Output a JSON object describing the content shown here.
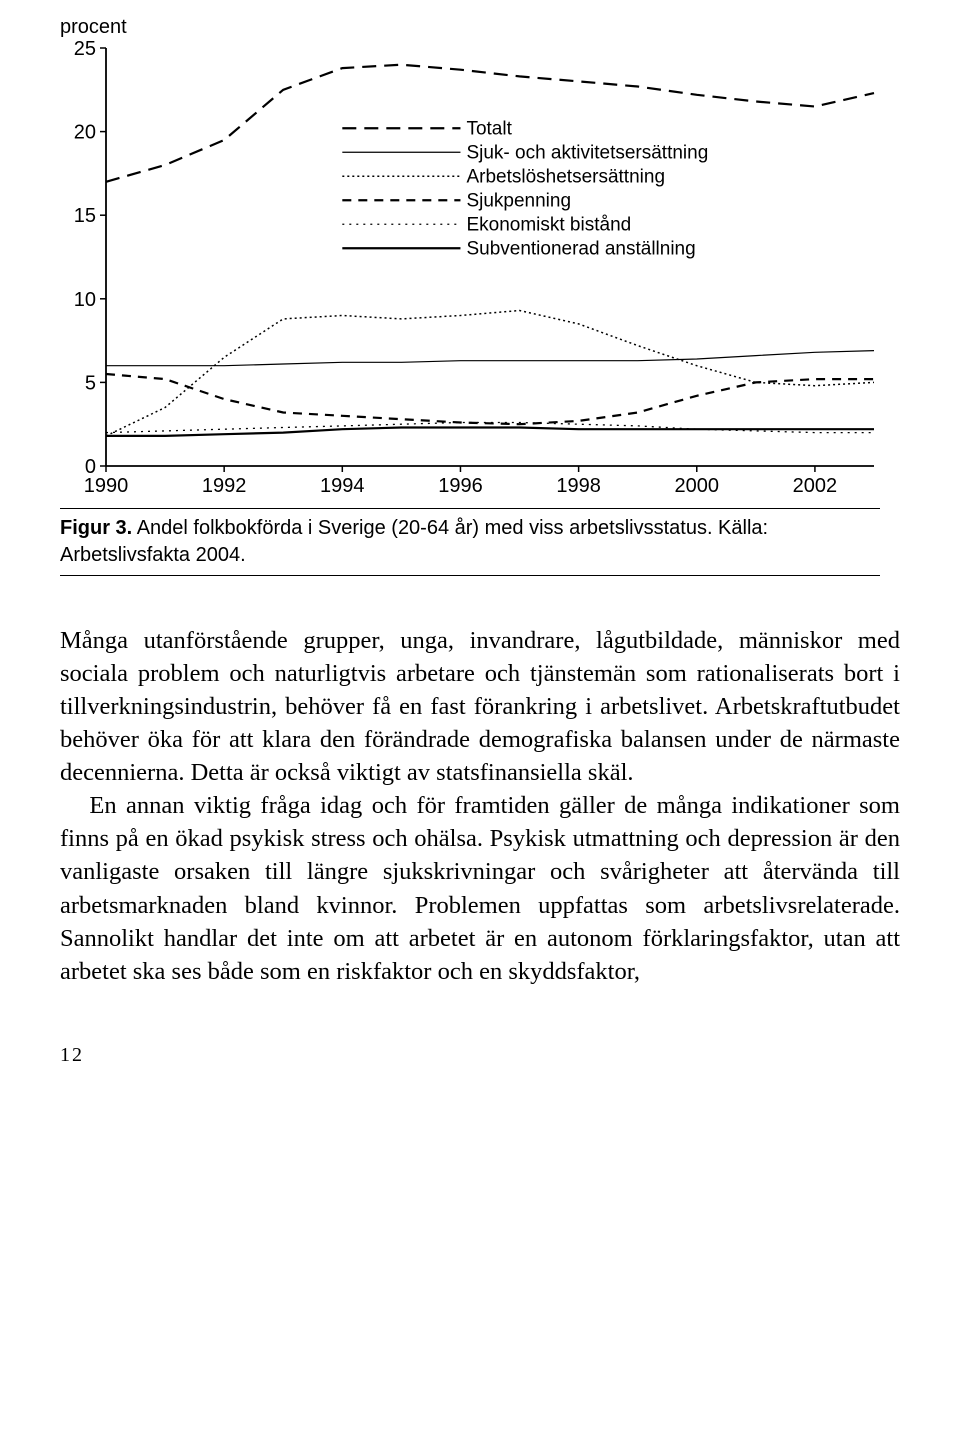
{
  "chart": {
    "type": "line",
    "y_title": "procent",
    "ylim": [
      0,
      25
    ],
    "ytick_step": 5,
    "yticks": [
      0,
      5,
      10,
      15,
      20,
      25
    ],
    "xlim": [
      1990,
      2003
    ],
    "xticks": [
      1990,
      1992,
      1994,
      1996,
      1998,
      2000,
      2002
    ],
    "background_color": "#ffffff",
    "axis_color": "#000000",
    "axis_fontsize": 20,
    "axis_fontfamily": "Arial",
    "series": [
      {
        "name": "Totalt",
        "dash": "14,8",
        "width": 2.2,
        "color": "#000000",
        "points": [
          [
            1990,
            17.0
          ],
          [
            1991,
            18.0
          ],
          [
            1992,
            19.5
          ],
          [
            1993,
            22.5
          ],
          [
            1994,
            23.8
          ],
          [
            1995,
            24.0
          ],
          [
            1996,
            23.7
          ],
          [
            1997,
            23.3
          ],
          [
            1998,
            23.0
          ],
          [
            1999,
            22.7
          ],
          [
            2000,
            22.2
          ],
          [
            2001,
            21.8
          ],
          [
            2002,
            21.5
          ],
          [
            2003,
            22.3
          ]
        ]
      },
      {
        "name": "Sjuk- och aktivitetsersättning",
        "dash": "none",
        "width": 1.2,
        "color": "#000000",
        "points": [
          [
            1990,
            6.0
          ],
          [
            1991,
            6.0
          ],
          [
            1992,
            6.0
          ],
          [
            1993,
            6.1
          ],
          [
            1994,
            6.2
          ],
          [
            1995,
            6.2
          ],
          [
            1996,
            6.3
          ],
          [
            1997,
            6.3
          ],
          [
            1998,
            6.3
          ],
          [
            1999,
            6.3
          ],
          [
            2000,
            6.4
          ],
          [
            2001,
            6.6
          ],
          [
            2002,
            6.8
          ],
          [
            2003,
            6.9
          ]
        ]
      },
      {
        "name": "Arbetslöshetsersättning",
        "dash": "2,3",
        "width": 1.5,
        "color": "#000000",
        "points": [
          [
            1990,
            1.8
          ],
          [
            1991,
            3.5
          ],
          [
            1992,
            6.5
          ],
          [
            1993,
            8.8
          ],
          [
            1994,
            9.0
          ],
          [
            1995,
            8.8
          ],
          [
            1996,
            9.0
          ],
          [
            1997,
            9.3
          ],
          [
            1998,
            8.5
          ],
          [
            1999,
            7.2
          ],
          [
            2000,
            6.0
          ],
          [
            2001,
            5.0
          ],
          [
            2002,
            4.8
          ],
          [
            2003,
            5.0
          ]
        ]
      },
      {
        "name": "Sjukpenning",
        "dash": "9,7",
        "width": 2.2,
        "color": "#000000",
        "points": [
          [
            1990,
            5.5
          ],
          [
            1991,
            5.2
          ],
          [
            1992,
            4.0
          ],
          [
            1993,
            3.2
          ],
          [
            1994,
            3.0
          ],
          [
            1995,
            2.8
          ],
          [
            1996,
            2.6
          ],
          [
            1997,
            2.5
          ],
          [
            1998,
            2.7
          ],
          [
            1999,
            3.2
          ],
          [
            2000,
            4.2
          ],
          [
            2001,
            5.0
          ],
          [
            2002,
            5.2
          ],
          [
            2003,
            5.2
          ]
        ]
      },
      {
        "name": "Ekonomiskt bistånd",
        "dash": "2,5",
        "width": 1.3,
        "color": "#000000",
        "points": [
          [
            1990,
            2.0
          ],
          [
            1991,
            2.1
          ],
          [
            1992,
            2.2
          ],
          [
            1993,
            2.3
          ],
          [
            1994,
            2.4
          ],
          [
            1995,
            2.5
          ],
          [
            1996,
            2.6
          ],
          [
            1997,
            2.6
          ],
          [
            1998,
            2.5
          ],
          [
            1999,
            2.4
          ],
          [
            2000,
            2.2
          ],
          [
            2001,
            2.1
          ],
          [
            2002,
            2.0
          ],
          [
            2003,
            2.0
          ]
        ]
      },
      {
        "name": "Subventionerad anställning",
        "dash": "none",
        "width": 2.2,
        "color": "#000000",
        "points": [
          [
            1990,
            1.8
          ],
          [
            1991,
            1.8
          ],
          [
            1992,
            1.9
          ],
          [
            1993,
            2.0
          ],
          [
            1994,
            2.2
          ],
          [
            1995,
            2.3
          ],
          [
            1996,
            2.3
          ],
          [
            1997,
            2.3
          ],
          [
            1998,
            2.2
          ],
          [
            1999,
            2.2
          ],
          [
            2000,
            2.2
          ],
          [
            2001,
            2.2
          ],
          [
            2002,
            2.2
          ],
          [
            2003,
            2.2
          ]
        ]
      }
    ],
    "legend": {
      "x": 1994.0,
      "y_top": 20.2,
      "line_len_years": 2.0,
      "fontsize": 19,
      "items": [
        {
          "series": 0,
          "label": "Totalt"
        },
        {
          "series": 1,
          "label": "Sjuk- och aktivitetsersättning"
        },
        {
          "series": 2,
          "label": "Arbetslöshetsersättning"
        },
        {
          "series": 3,
          "label": "Sjukpenning"
        },
        {
          "series": 4,
          "label": "Ekonomiskt bistånd"
        },
        {
          "series": 5,
          "label": "Subventionerad anställning"
        }
      ]
    }
  },
  "caption": {
    "figno": "Figur 3.",
    "text": "Andel folkbokförda i Sverige (20-64 år) med viss arbetslivsstatus. Källa: Arbetslivsfakta 2004."
  },
  "body": {
    "p1": "Många utanförstående grupper, unga, invandrare, lågutbildade, människor med sociala problem och naturligtvis arbetare och tjänstemän som rationaliserats bort i tillverkningsindustrin, behöver få en fast förankring i arbetslivet. Arbetskraftutbudet behöver öka för att klara den förändrade demografiska balansen under de när­maste decennierna. Detta är också viktigt av statsfinansiella skäl.",
    "p2": "En annan viktig fråga idag och för framtiden gäller de många in­dikationer som finns på en ökad psykisk stress och ohälsa. Psykisk utmattning och depression är den vanligaste orsaken till längre sjuk­skrivningar och svårigheter att återvända till arbetsmarknaden bland kvinnor. Problemen uppfattas som arbetslivsrelaterade. Sannolikt handlar det inte om att arbetet är en autonom förklaringsfaktor, utan att arbetet ska ses både som en riskfaktor och en skyddsfaktor,"
  },
  "page_number": "12"
}
